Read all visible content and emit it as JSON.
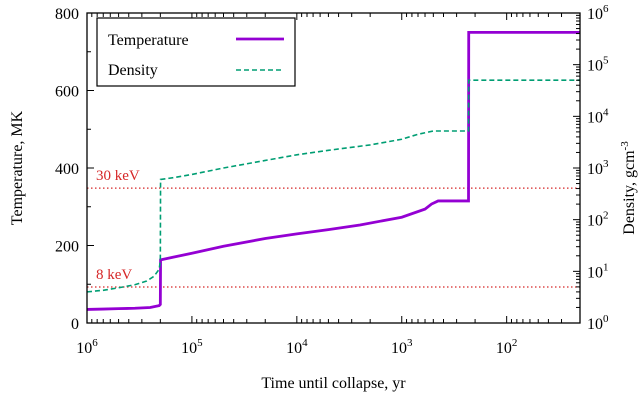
{
  "chart_data": {
    "type": "line",
    "title": "",
    "xlabel": "Time until collapse, yr",
    "ylabel": "Temperature, MK",
    "y2label": "Density, gcm",
    "y2label_sup": "-3",
    "xscale": "log, reversed",
    "xlim": [
      1000000,
      20
    ],
    "ylim": [
      0,
      800
    ],
    "y2scale": "log",
    "y2lim": [
      1,
      1000000
    ],
    "x_ticks": [
      {
        "value": 1000000,
        "base": "10",
        "exp": "6"
      },
      {
        "value": 100000,
        "base": "10",
        "exp": "5"
      },
      {
        "value": 10000,
        "base": "10",
        "exp": "4"
      },
      {
        "value": 1000,
        "base": "10",
        "exp": "3"
      },
      {
        "value": 100,
        "base": "10",
        "exp": "2"
      }
    ],
    "y_ticks": [
      "0",
      "200",
      "400",
      "600",
      "800"
    ],
    "y2_ticks": [
      {
        "value": 1,
        "base": "10",
        "exp": "0"
      },
      {
        "value": 10,
        "base": "10",
        "exp": "1"
      },
      {
        "value": 100,
        "base": "10",
        "exp": "2"
      },
      {
        "value": 1000,
        "base": "10",
        "exp": "3"
      },
      {
        "value": 10000,
        "base": "10",
        "exp": "4"
      },
      {
        "value": 100000,
        "base": "10",
        "exp": "5"
      },
      {
        "value": 1000000,
        "base": "10",
        "exp": "6"
      }
    ],
    "legend_position": "top-left",
    "grid": false,
    "series": [
      {
        "name": "Temperature",
        "axis": "left",
        "style": "solid",
        "color": "#9400d3",
        "x": [
          1000000,
          700000,
          500000,
          350000,
          250000,
          205000,
          200000,
          199000,
          150000,
          100000,
          50000,
          20000,
          10000,
          5000,
          2500,
          1000,
          600,
          520,
          450,
          300,
          231,
          230,
          100,
          20
        ],
        "y": [
          35,
          36,
          37,
          38,
          40,
          45,
          48,
          163,
          170,
          180,
          198,
          218,
          230,
          241,
          253,
          273,
          294,
          307,
          315,
          315,
          315,
          750,
          750,
          750
        ]
      },
      {
        "name": "Density",
        "axis": "right",
        "style": "dashed",
        "color": "#009e73",
        "x": [
          1000000,
          700000,
          500000,
          350000,
          270000,
          230000,
          205000,
          200000,
          199000,
          150000,
          100000,
          50000,
          20000,
          10000,
          5000,
          2000,
          1000,
          700,
          500,
          400,
          300,
          231,
          230,
          100,
          20
        ],
        "y": [
          4,
          4.3,
          4.8,
          5.5,
          6.5,
          8,
          11,
          16,
          600,
          650,
          750,
          1000,
          1400,
          1800,
          2200,
          2800,
          3600,
          4500,
          5200,
          5200,
          5200,
          5200,
          50000,
          50000,
          50000
        ]
      }
    ],
    "reference_lines": [
      {
        "label": "8 keV",
        "y": 93,
        "color": "#d62728",
        "style": "dotted"
      },
      {
        "label": "30 keV",
        "y": 348,
        "color": "#d62728",
        "style": "dotted"
      }
    ]
  }
}
